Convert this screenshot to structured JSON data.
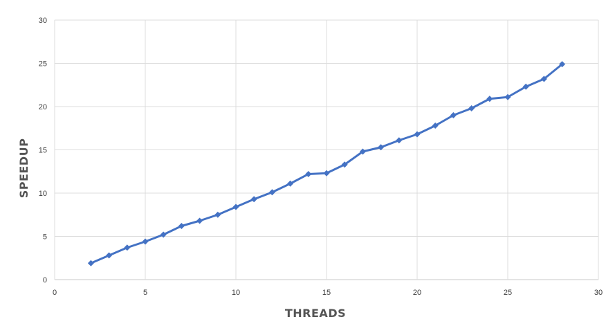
{
  "chart_data": {
    "type": "line",
    "title": "",
    "xlabel": "THREADS",
    "ylabel": "SPEEDUP",
    "xlim": [
      0,
      30
    ],
    "ylim": [
      0,
      30
    ],
    "xticks": [
      0,
      5,
      10,
      15,
      20,
      25,
      30
    ],
    "yticks": [
      0,
      5,
      10,
      15,
      20,
      25,
      30
    ],
    "grid": true,
    "legend": "none",
    "series": [
      {
        "color": "#4472C4",
        "marker": "diamond",
        "x": [
          2,
          3,
          4,
          5,
          6,
          7,
          8,
          9,
          10,
          11,
          12,
          13,
          14,
          15,
          16,
          17,
          18,
          19,
          20,
          21,
          22,
          23,
          24,
          25,
          26,
          27,
          28
        ],
        "y": [
          1.9,
          2.8,
          3.7,
          4.4,
          5.2,
          6.2,
          6.8,
          7.5,
          8.4,
          9.3,
          10.1,
          11.1,
          12.2,
          12.3,
          13.3,
          14.8,
          15.3,
          16.1,
          16.8,
          17.8,
          19.0,
          19.8,
          20.9,
          21.1,
          22.3,
          23.2,
          24.9
        ]
      }
    ]
  }
}
